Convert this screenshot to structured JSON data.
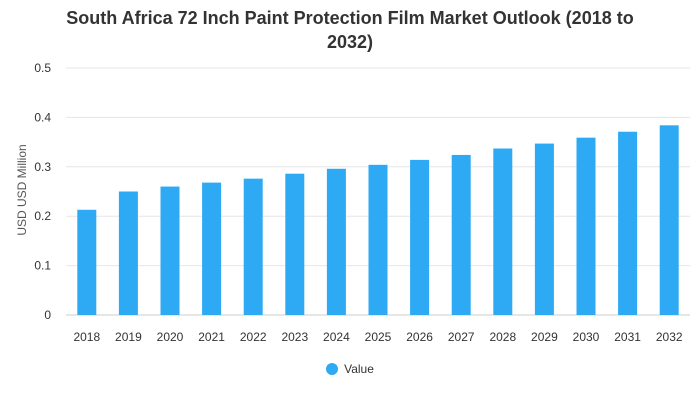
{
  "chart_data": {
    "type": "bar",
    "title_lines": [
      "South Africa 72 Inch Paint Protection Film Market Outlook (2018 to",
      "2032)"
    ],
    "xlabel": "",
    "ylabel": "USD USD Million",
    "categories": [
      "2018",
      "2019",
      "2020",
      "2021",
      "2022",
      "2023",
      "2024",
      "2025",
      "2026",
      "2027",
      "2028",
      "2029",
      "2030",
      "2031",
      "2032"
    ],
    "series": [
      {
        "name": "Value",
        "color": "#2eaaf5",
        "values": [
          0.213,
          0.25,
          0.26,
          0.268,
          0.276,
          0.286,
          0.296,
          0.304,
          0.314,
          0.324,
          0.337,
          0.347,
          0.359,
          0.371,
          0.384
        ]
      }
    ],
    "ylim": [
      0,
      0.5
    ],
    "yticks": [
      "0",
      "0.1",
      "0.2",
      "0.3",
      "0.4",
      "0.5"
    ],
    "grid": true,
    "legend_position": "bottom"
  }
}
